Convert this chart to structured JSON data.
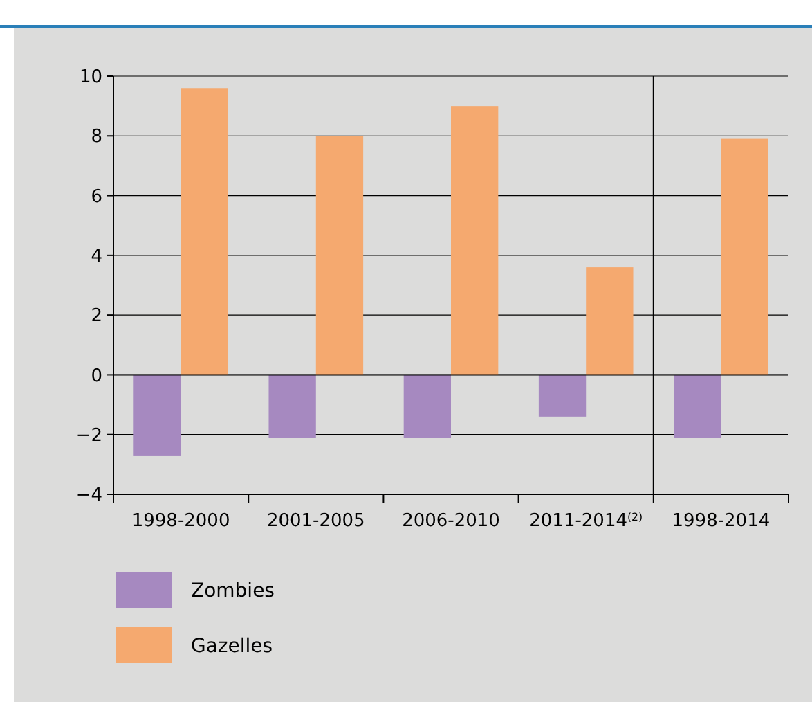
{
  "chart_data": {
    "type": "bar",
    "categories": [
      "1998-2000",
      "2001-2005",
      "2006-2010",
      "2011-2014$^{(2)}$",
      "1998-2014"
    ],
    "series": [
      {
        "name": "Zombies",
        "color": "#a689c0",
        "values": [
          -2.7,
          -2.1,
          -2.1,
          -1.4,
          -2.1
        ]
      },
      {
        "name": "Gazelles",
        "color": "#f5a96f",
        "values": [
          9.6,
          8.0,
          9.0,
          3.6,
          7.9
        ]
      }
    ],
    "ylim": [
      -4,
      10
    ],
    "yticks": [
      {
        "value": -4,
        "label": "−4"
      },
      {
        "value": -2,
        "label": "−2"
      },
      0,
      2,
      4,
      6,
      8,
      10
    ],
    "grid": "y",
    "legend": "bottom left"
  }
}
